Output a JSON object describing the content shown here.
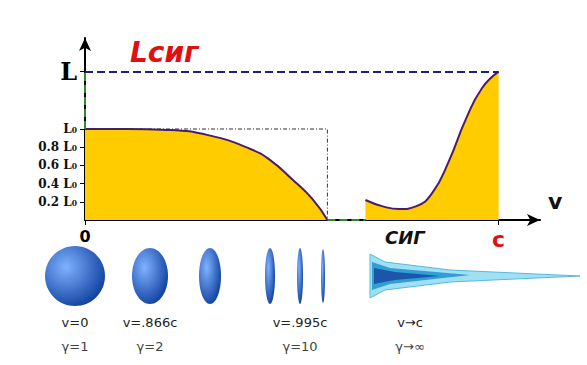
{
  "chart_data": {
    "type": "area",
    "x_label": "v",
    "xlim": [
      0,
      1.1
    ],
    "xticks": [
      {
        "value": 0,
        "label": "0"
      },
      {
        "value": 1,
        "label": "c"
      }
    ],
    "ylim": [
      0,
      2
    ],
    "yticks": [
      {
        "value": 0.2,
        "label": "0.2 L₀"
      },
      {
        "value": 0.4,
        "label": "0.4 L₀"
      },
      {
        "value": 0.6,
        "label": "0.6 L₀"
      },
      {
        "value": 0.8,
        "label": "0.8 L₀"
      },
      {
        "value": 1,
        "label": "L₀"
      },
      {
        "value": 1.63,
        "label": "L"
      }
    ],
    "grid": false,
    "series": [
      {
        "color": "#ffcc00",
        "values": [
          [
            0,
            1
          ],
          [
            0.1,
            1
          ],
          [
            0.2,
            0.99
          ],
          [
            0.3,
            0.93
          ],
          [
            0.4,
            0.78
          ],
          [
            0.45,
            0.65
          ],
          [
            0.5,
            0.45
          ],
          [
            0.55,
            0.23
          ],
          [
            0.586,
            0
          ]
        ]
      },
      {
        "color": "#ffcc00",
        "values": [
          [
            0.678,
            0.22
          ],
          [
            0.72,
            0.15
          ],
          [
            0.76,
            0.12
          ],
          [
            0.8,
            0.15
          ],
          [
            0.84,
            0.3
          ],
          [
            0.88,
            0.65
          ],
          [
            0.92,
            1.1
          ],
          [
            0.96,
            1.45
          ],
          [
            1,
            1.63
          ]
        ]
      }
    ],
    "reference_line": {
      "value": 1.63,
      "label": "Lсиг"
    },
    "annotations": {
      "sig": "СИГ",
      "objects": [
        {
          "v": "v=0",
          "gamma": "γ=1"
        },
        {
          "v": "v=.866c",
          "gamma": "γ=2"
        },
        {
          "v": "v=.995c",
          "gamma": "γ=10"
        },
        {
          "v": "v→c",
          "gamma": "γ→∞"
        }
      ]
    }
  }
}
